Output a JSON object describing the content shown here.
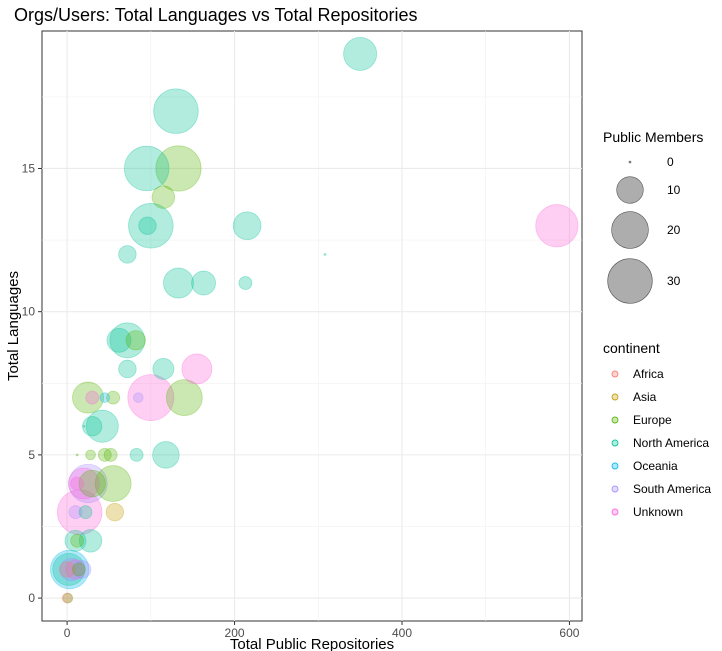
{
  "chart_data": {
    "type": "scatter",
    "title": "Orgs/Users: Total Languages vs Total Repositories",
    "xlabel": "Total Public Repositories",
    "ylabel": "Total Languages",
    "xlim": [
      -30,
      615
    ],
    "ylim": [
      -0.8,
      19.8
    ],
    "x_ticks": [
      0,
      200,
      400,
      600
    ],
    "y_ticks": [
      0,
      5,
      10,
      15
    ],
    "grid": true,
    "legend_position": "right",
    "size_legend": {
      "title": "Public Members",
      "values": [
        0,
        10,
        20,
        30
      ]
    },
    "color_legend": {
      "title": "continent",
      "items": [
        {
          "name": "Africa",
          "color": "#F8766D"
        },
        {
          "name": "Asia",
          "color": "#C49A00"
        },
        {
          "name": "Europe",
          "color": "#53B400"
        },
        {
          "name": "North America",
          "color": "#00C094"
        },
        {
          "name": "Oceania",
          "color": "#00B6EB"
        },
        {
          "name": "South America",
          "color": "#A58AFF"
        },
        {
          "name": "Unknown",
          "color": "#FB61D7"
        }
      ]
    },
    "points": [
      {
        "x": 350,
        "y": 19,
        "members": 16,
        "continent": "North America"
      },
      {
        "x": 130,
        "y": 17,
        "members": 30,
        "continent": "North America"
      },
      {
        "x": 95,
        "y": 15,
        "members": 30,
        "continent": "North America"
      },
      {
        "x": 133,
        "y": 15,
        "members": 31,
        "continent": "Europe"
      },
      {
        "x": 115,
        "y": 14,
        "members": 7,
        "continent": "Europe"
      },
      {
        "x": 100,
        "y": 13,
        "members": 30,
        "continent": "North America"
      },
      {
        "x": 96,
        "y": 13,
        "members": 4,
        "continent": "North America"
      },
      {
        "x": 215,
        "y": 13,
        "members": 11,
        "continent": "North America"
      },
      {
        "x": 585,
        "y": 13,
        "members": 27,
        "continent": "Unknown"
      },
      {
        "x": 72,
        "y": 12,
        "members": 4,
        "continent": "North America"
      },
      {
        "x": 308,
        "y": 12,
        "members": 0,
        "continent": "North America"
      },
      {
        "x": 133,
        "y": 11,
        "members": 13,
        "continent": "North America"
      },
      {
        "x": 163,
        "y": 11,
        "members": 8,
        "continent": "North America"
      },
      {
        "x": 213,
        "y": 11,
        "members": 2,
        "continent": "North America"
      },
      {
        "x": 72,
        "y": 9,
        "members": 18,
        "continent": "North America"
      },
      {
        "x": 62,
        "y": 9,
        "members": 8,
        "continent": "North America"
      },
      {
        "x": 82,
        "y": 9,
        "members": 5,
        "continent": "Europe"
      },
      {
        "x": 115,
        "y": 8,
        "members": 6,
        "continent": "North America"
      },
      {
        "x": 72,
        "y": 8,
        "members": 4,
        "continent": "North America"
      },
      {
        "x": 155,
        "y": 8,
        "members": 13,
        "continent": "Unknown"
      },
      {
        "x": 100,
        "y": 7,
        "members": 32,
        "continent": "Unknown"
      },
      {
        "x": 140,
        "y": 7,
        "members": 19,
        "continent": "Europe"
      },
      {
        "x": 25,
        "y": 7,
        "members": 14,
        "continent": "Europe"
      },
      {
        "x": 30,
        "y": 7,
        "members": 2,
        "continent": "Unknown"
      },
      {
        "x": 55,
        "y": 7,
        "members": 2,
        "continent": "Europe"
      },
      {
        "x": 45,
        "y": 7,
        "members": 1,
        "continent": "Oceania"
      },
      {
        "x": 85,
        "y": 7,
        "members": 1,
        "continent": "South America"
      },
      {
        "x": 42,
        "y": 6,
        "members": 15,
        "continent": "North America"
      },
      {
        "x": 30,
        "y": 6,
        "members": 5,
        "continent": "North America"
      },
      {
        "x": 20,
        "y": 6,
        "members": 0,
        "continent": "North America"
      },
      {
        "x": 45,
        "y": 5,
        "members": 2,
        "continent": "Europe"
      },
      {
        "x": 52,
        "y": 5,
        "members": 2,
        "continent": "Europe"
      },
      {
        "x": 28,
        "y": 5,
        "members": 1,
        "continent": "Europe"
      },
      {
        "x": 83,
        "y": 5,
        "members": 2,
        "continent": "North America"
      },
      {
        "x": 118,
        "y": 5,
        "members": 10,
        "continent": "North America"
      },
      {
        "x": 12,
        "y": 5,
        "members": 0,
        "continent": "Europe"
      },
      {
        "x": 25,
        "y": 4,
        "members": 22,
        "continent": "South America"
      },
      {
        "x": 20,
        "y": 4,
        "members": 14,
        "continent": "Unknown"
      },
      {
        "x": 55,
        "y": 4,
        "members": 19,
        "continent": "Europe"
      },
      {
        "x": 30,
        "y": 4,
        "members": 10,
        "continent": "Europe"
      },
      {
        "x": 12,
        "y": 4,
        "members": 2,
        "continent": "Unknown"
      },
      {
        "x": 15,
        "y": 3,
        "members": 30,
        "continent": "Unknown"
      },
      {
        "x": 10,
        "y": 3,
        "members": 2,
        "continent": "South America"
      },
      {
        "x": 22,
        "y": 3,
        "members": 2,
        "continent": "North America"
      },
      {
        "x": 57,
        "y": 3,
        "members": 4,
        "continent": "Asia"
      },
      {
        "x": 10,
        "y": 2,
        "members": 6,
        "continent": "North America"
      },
      {
        "x": 28,
        "y": 2,
        "members": 7,
        "continent": "North America"
      },
      {
        "x": 12,
        "y": 2,
        "members": 2,
        "continent": "Europe"
      },
      {
        "x": 3,
        "y": 1,
        "members": 22,
        "continent": "Oceania"
      },
      {
        "x": 2,
        "y": 1,
        "members": 15,
        "continent": "North America"
      },
      {
        "x": 5,
        "y": 1,
        "members": 7,
        "continent": "South America"
      },
      {
        "x": 10,
        "y": 1,
        "members": 5,
        "continent": "Unknown"
      },
      {
        "x": 18,
        "y": 1,
        "members": 4,
        "continent": "South America"
      },
      {
        "x": 14,
        "y": 1,
        "members": 2,
        "continent": "Europe"
      },
      {
        "x": 0,
        "y": 1,
        "members": 3,
        "continent": "Africa"
      },
      {
        "x": 1,
        "y": 0,
        "members": 1,
        "continent": "Europe"
      },
      {
        "x": 0,
        "y": 0,
        "members": 1,
        "continent": "Africa"
      }
    ]
  }
}
